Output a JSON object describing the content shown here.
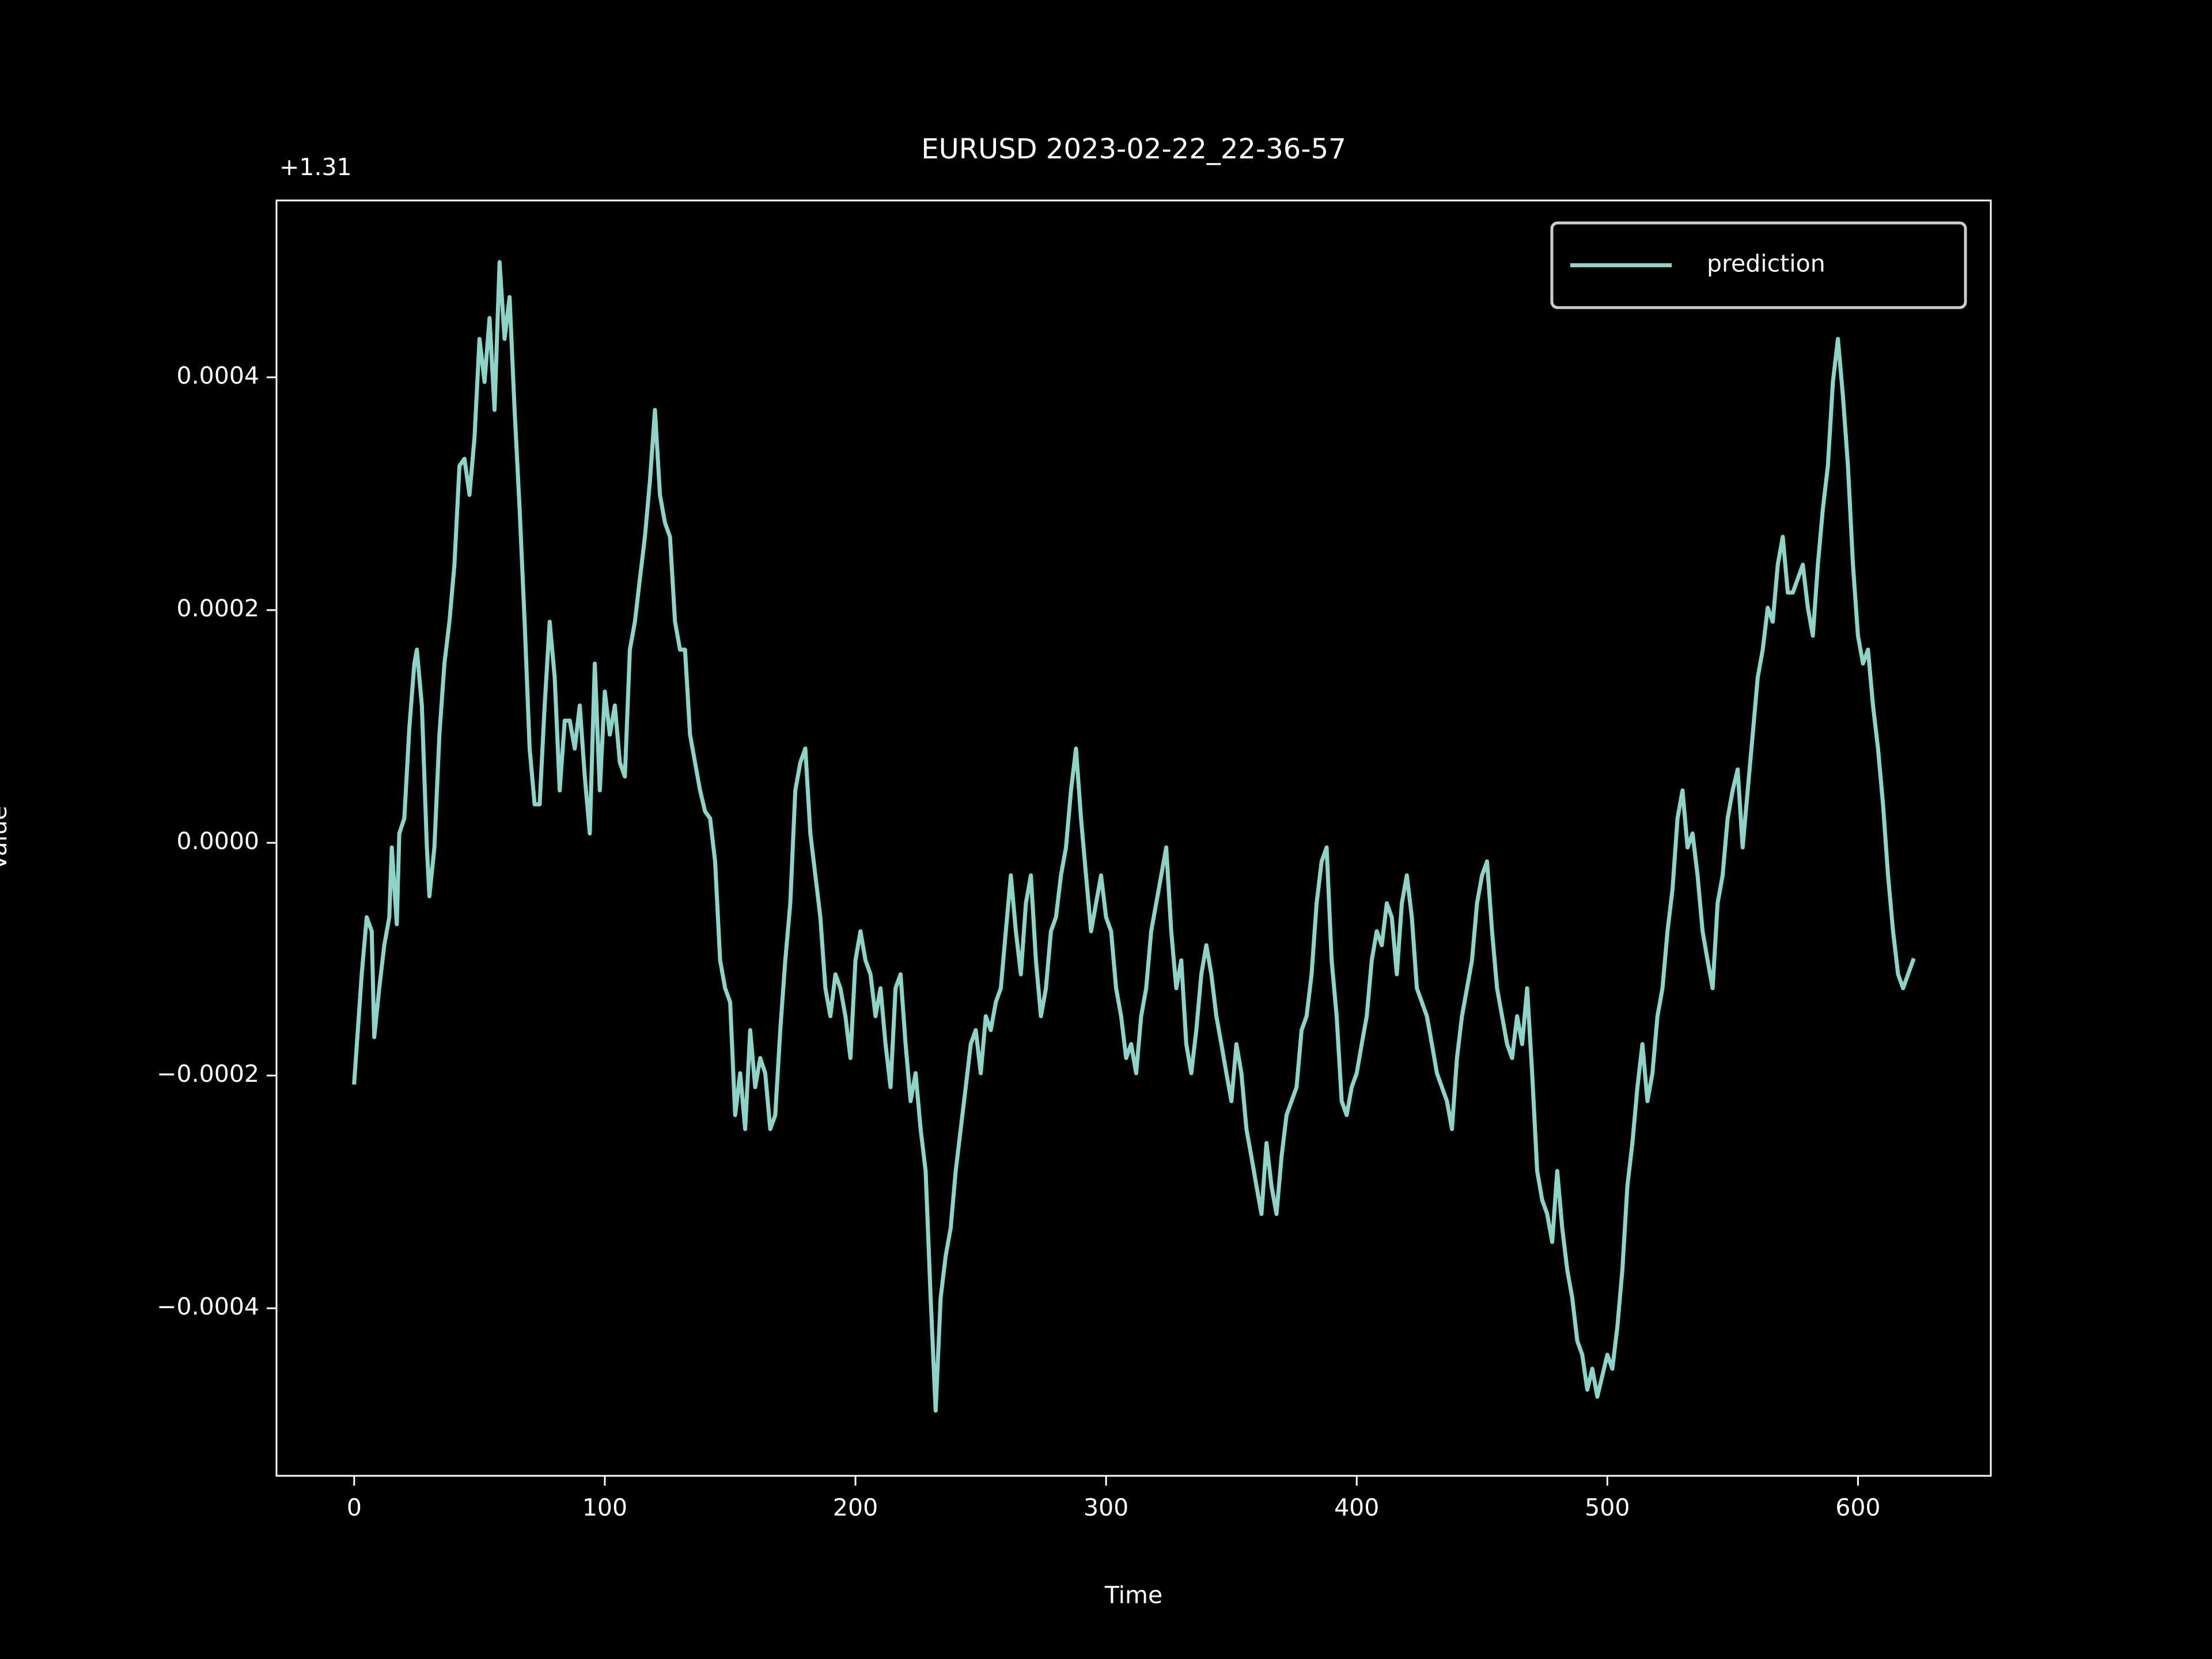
{
  "chart_data": {
    "type": "line",
    "title": "EURUSD 2023-02-22_22-36-57",
    "x_label": "Time",
    "y_label": "Value",
    "y_offset_label": "+1.31",
    "x": [
      0,
      3,
      5,
      7,
      8,
      10,
      12,
      14,
      15,
      17,
      18,
      20,
      22,
      24,
      25,
      27,
      29,
      30,
      32,
      34,
      36,
      38,
      40,
      42,
      44,
      46,
      48,
      50,
      52,
      54,
      56,
      58,
      60,
      62,
      64,
      66,
      68,
      70,
      72,
      74,
      76,
      78,
      80,
      82,
      84,
      86,
      88,
      90,
      92,
      94,
      96,
      98,
      100,
      102,
      104,
      106,
      108,
      110,
      112,
      114,
      116,
      118,
      120,
      122,
      124,
      126,
      128,
      130,
      132,
      134,
      136,
      138,
      140,
      142,
      144,
      146,
      148,
      150,
      152,
      154,
      156,
      158,
      160,
      162,
      164,
      166,
      168,
      170,
      172,
      174,
      176,
      178,
      180,
      182,
      184,
      186,
      188,
      190,
      192,
      194,
      196,
      198,
      200,
      202,
      204,
      206,
      208,
      210,
      212,
      214,
      216,
      218,
      220,
      222,
      224,
      226,
      228,
      230,
      232,
      234,
      236,
      238,
      240,
      242,
      244,
      246,
      248,
      250,
      252,
      254,
      256,
      258,
      260,
      262,
      264,
      266,
      268,
      270,
      272,
      274,
      276,
      278,
      280,
      282,
      284,
      286,
      288,
      290,
      292,
      294,
      296,
      298,
      300,
      302,
      304,
      306,
      308,
      310,
      312,
      314,
      316,
      318,
      320,
      322,
      324,
      326,
      328,
      330,
      332,
      334,
      336,
      338,
      340,
      342,
      344,
      346,
      348,
      350,
      352,
      354,
      356,
      358,
      360,
      362,
      364,
      366,
      368,
      370,
      372,
      374,
      376,
      378,
      380,
      382,
      384,
      386,
      388,
      390,
      392,
      394,
      396,
      398,
      400,
      402,
      404,
      406,
      408,
      410,
      412,
      414,
      416,
      418,
      420,
      422,
      424,
      426,
      428,
      430,
      432,
      434,
      436,
      438,
      440,
      442,
      444,
      446,
      448,
      450,
      452,
      454,
      456,
      458,
      460,
      462,
      464,
      466,
      468,
      470,
      472,
      474,
      476,
      478,
      480,
      482,
      484,
      486,
      488,
      490,
      492,
      494,
      496,
      498,
      500,
      502,
      504,
      506,
      508,
      510,
      512,
      514,
      516,
      518,
      520,
      522,
      524,
      526,
      528,
      530,
      532,
      534,
      536,
      538,
      540,
      542,
      544,
      546,
      548,
      550,
      552,
      554,
      556,
      558,
      560,
      562,
      564,
      566,
      568,
      570,
      572,
      574,
      576,
      578,
      580,
      582,
      584,
      586,
      588,
      590,
      592,
      594,
      596,
      598,
      600,
      602,
      604,
      606,
      608,
      610,
      612,
      614,
      616,
      618,
      620,
      622
    ],
    "series": [
      {
        "name": "prediction",
        "color": "#8dd3c7",
        "values": [
          -0.000206,
          -0.000113,
          -6.4e-05,
          -7.6e-05,
          -0.000167,
          -0.000125,
          -8.8e-05,
          -6.4e-05,
          -4e-06,
          -7e-05,
          8e-06,
          2.1e-05,
          9.9e-05,
          0.000154,
          0.000166,
          0.000118,
          -4e-06,
          -4.6e-05,
          -4e-06,
          9.3e-05,
          0.000154,
          0.00019,
          0.000239,
          0.000324,
          0.00033,
          0.000299,
          0.000348,
          0.000433,
          0.000396,
          0.000451,
          0.000372,
          0.000499,
          0.000433,
          0.000469,
          0.000372,
          0.000287,
          0.00019,
          8.1e-05,
          3.3e-05,
          3.3e-05,
          0.000118,
          0.00019,
          0.000142,
          4.5e-05,
          0.000105,
          0.000105,
          8.1e-05,
          0.000118,
          5.7e-05,
          8e-06,
          0.000154,
          4.5e-05,
          0.00013,
          9.3e-05,
          0.000118,
          6.9e-05,
          5.7e-05,
          0.000166,
          0.00019,
          0.000227,
          0.000263,
          0.000311,
          0.000372,
          0.000299,
          0.000275,
          0.000263,
          0.00019,
          0.000166,
          0.000166,
          9.3e-05,
          6.9e-05,
          4.5e-05,
          2.7e-05,
          2.1e-05,
          -1.6e-05,
          -0.000101,
          -0.000125,
          -0.000137,
          -0.000234,
          -0.000198,
          -0.000246,
          -0.000161,
          -0.00021,
          -0.000185,
          -0.000198,
          -0.000246,
          -0.000234,
          -0.000161,
          -0.000101,
          -5.2e-05,
          4.5e-05,
          6.9e-05,
          8.1e-05,
          8e-06,
          -2.8e-05,
          -6.4e-05,
          -0.000125,
          -0.000149,
          -0.000113,
          -0.000125,
          -0.000149,
          -0.000185,
          -0.000101,
          -7.6e-05,
          -0.000101,
          -0.000113,
          -0.000149,
          -0.000125,
          -0.000173,
          -0.00021,
          -0.000125,
          -0.000113,
          -0.000173,
          -0.000222,
          -0.000198,
          -0.000246,
          -0.000282,
          -0.000391,
          -0.000488,
          -0.000391,
          -0.000355,
          -0.000331,
          -0.000282,
          -0.000246,
          -0.00021,
          -0.000173,
          -0.000161,
          -0.000198,
          -0.000149,
          -0.000161,
          -0.000137,
          -0.000125,
          -7.6e-05,
          -2.8e-05,
          -7.6e-05,
          -0.000113,
          -5.2e-05,
          -2.8e-05,
          -0.000101,
          -0.000149,
          -0.000125,
          -7.6e-05,
          -6.4e-05,
          -2.8e-05,
          -4e-06,
          4.5e-05,
          8.1e-05,
          2.1e-05,
          -2.8e-05,
          -7.6e-05,
          -5.2e-05,
          -2.8e-05,
          -6.4e-05,
          -7.6e-05,
          -0.000125,
          -0.000149,
          -0.000185,
          -0.000173,
          -0.000198,
          -0.000149,
          -0.000125,
          -7.6e-05,
          -5.2e-05,
          -2.8e-05,
          -4e-06,
          -7.6e-05,
          -0.000125,
          -0.000101,
          -0.000173,
          -0.000198,
          -0.000161,
          -0.000113,
          -8.8e-05,
          -0.000113,
          -0.000149,
          -0.000173,
          -0.000198,
          -0.000222,
          -0.000173,
          -0.000198,
          -0.000246,
          -0.00027,
          -0.000295,
          -0.000319,
          -0.000258,
          -0.000295,
          -0.000319,
          -0.00027,
          -0.000234,
          -0.000222,
          -0.00021,
          -0.000161,
          -0.000149,
          -0.000113,
          -5.2e-05,
          -1.6e-05,
          -4e-06,
          -0.000101,
          -0.000149,
          -0.000222,
          -0.000234,
          -0.00021,
          -0.000198,
          -0.000173,
          -0.000149,
          -0.000101,
          -7.6e-05,
          -8.8e-05,
          -5.2e-05,
          -6.4e-05,
          -0.000113,
          -5.2e-05,
          -2.8e-05,
          -6.4e-05,
          -0.000125,
          -0.000137,
          -0.000149,
          -0.000173,
          -0.000198,
          -0.00021,
          -0.000222,
          -0.000246,
          -0.000185,
          -0.000149,
          -0.000125,
          -0.000101,
          -5.2e-05,
          -2.8e-05,
          -1.6e-05,
          -7.6e-05,
          -0.000125,
          -0.000149,
          -0.000173,
          -0.000185,
          -0.000149,
          -0.000173,
          -0.000125,
          -0.000198,
          -0.000282,
          -0.000307,
          -0.000319,
          -0.000343,
          -0.000282,
          -0.000331,
          -0.000367,
          -0.000391,
          -0.000428,
          -0.00044,
          -0.00047,
          -0.000452,
          -0.000476,
          -0.000458,
          -0.00044,
          -0.000452,
          -0.000416,
          -0.000367,
          -0.000295,
          -0.000258,
          -0.00021,
          -0.000173,
          -0.000222,
          -0.000198,
          -0.000149,
          -0.000125,
          -7.6e-05,
          -4e-05,
          2.1e-05,
          4.5e-05,
          -4e-06,
          8e-06,
          -2.8e-05,
          -7.6e-05,
          -0.000101,
          -0.000125,
          -5.2e-05,
          -2.8e-05,
          2.1e-05,
          4.5e-05,
          6.3e-05,
          -4e-06,
          4.5e-05,
          9.3e-05,
          0.000142,
          0.000166,
          0.000202,
          0.00019,
          0.000239,
          0.000263,
          0.000215,
          0.000215,
          0.000227,
          0.000239,
          0.000202,
          0.000178,
          0.000239,
          0.000287,
          0.000324,
          0.000396,
          0.000433,
          0.000384,
          0.000324,
          0.000239,
          0.000178,
          0.000154,
          0.000166,
          0.000118,
          8.1e-05,
          3.3e-05,
          -2.8e-05,
          -7.6e-05,
          -0.000113,
          -0.000125,
          -0.000113,
          -0.000101
        ]
      }
    ],
    "xlim": [
      -31,
      653
    ],
    "ylim": [
      -0.000544,
      0.000552
    ],
    "xticks": [
      0,
      100,
      200,
      300,
      400,
      500,
      600
    ],
    "yticks": [
      {
        "value": -0.0004,
        "label": "−0.0004"
      },
      {
        "value": -0.0002,
        "label": "−0.0002"
      },
      {
        "value": 0,
        "label": "0.0000"
      },
      0.0002,
      0.0004
    ],
    "grid": false,
    "legend": "upper right"
  }
}
